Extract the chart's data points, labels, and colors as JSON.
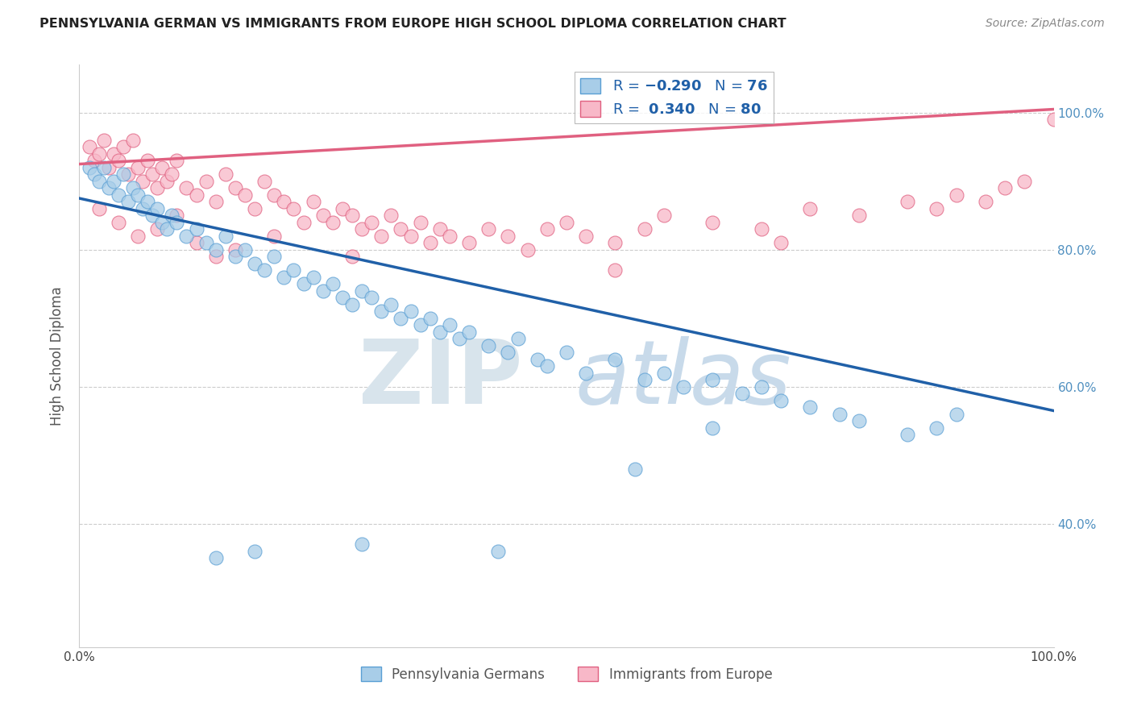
{
  "title": "PENNSYLVANIA GERMAN VS IMMIGRANTS FROM EUROPE HIGH SCHOOL DIPLOMA CORRELATION CHART",
  "source": "Source: ZipAtlas.com",
  "ylabel": "High School Diploma",
  "legend_blue_n": "76",
  "legend_pink_r": "0.340",
  "legend_pink_n": "80",
  "blue_color": "#a8cde8",
  "blue_edge_color": "#5a9fd4",
  "blue_line_color": "#2060a8",
  "pink_color": "#f8b8c8",
  "pink_edge_color": "#e06080",
  "pink_line_color": "#e06080",
  "watermark_zip_color": "#e0e8f0",
  "watermark_atlas_color": "#c8dff0",
  "right_tick_color": "#5090c0",
  "title_color": "#222222",
  "ylabel_color": "#555555",
  "source_color": "#888888",
  "grid_color": "#cccccc",
  "xlim": [
    0.0,
    1.0
  ],
  "ylim": [
    0.22,
    1.07
  ],
  "blue_line_x0": 0.0,
  "blue_line_y0": 0.875,
  "blue_line_x1": 1.0,
  "blue_line_y1": 0.565,
  "pink_line_x0": 0.0,
  "pink_line_y0": 0.925,
  "pink_line_x1": 1.0,
  "pink_line_y1": 1.005,
  "blue_x": [
    0.01,
    0.015,
    0.02,
    0.025,
    0.03,
    0.035,
    0.04,
    0.045,
    0.05,
    0.055,
    0.06,
    0.065,
    0.07,
    0.075,
    0.08,
    0.085,
    0.09,
    0.095,
    0.1,
    0.11,
    0.12,
    0.13,
    0.14,
    0.15,
    0.16,
    0.17,
    0.18,
    0.19,
    0.2,
    0.21,
    0.22,
    0.23,
    0.24,
    0.25,
    0.26,
    0.27,
    0.28,
    0.29,
    0.3,
    0.31,
    0.32,
    0.33,
    0.34,
    0.35,
    0.36,
    0.37,
    0.38,
    0.39,
    0.4,
    0.42,
    0.44,
    0.45,
    0.47,
    0.48,
    0.5,
    0.52,
    0.55,
    0.58,
    0.6,
    0.62,
    0.65,
    0.68,
    0.7,
    0.72,
    0.75,
    0.78,
    0.8,
    0.85,
    0.88,
    0.9,
    0.14,
    0.18,
    0.29,
    0.43,
    0.57,
    0.65
  ],
  "blue_y": [
    0.92,
    0.91,
    0.9,
    0.92,
    0.89,
    0.9,
    0.88,
    0.91,
    0.87,
    0.89,
    0.88,
    0.86,
    0.87,
    0.85,
    0.86,
    0.84,
    0.83,
    0.85,
    0.84,
    0.82,
    0.83,
    0.81,
    0.8,
    0.82,
    0.79,
    0.8,
    0.78,
    0.77,
    0.79,
    0.76,
    0.77,
    0.75,
    0.76,
    0.74,
    0.75,
    0.73,
    0.72,
    0.74,
    0.73,
    0.71,
    0.72,
    0.7,
    0.71,
    0.69,
    0.7,
    0.68,
    0.69,
    0.67,
    0.68,
    0.66,
    0.65,
    0.67,
    0.64,
    0.63,
    0.65,
    0.62,
    0.64,
    0.61,
    0.62,
    0.6,
    0.61,
    0.59,
    0.6,
    0.58,
    0.57,
    0.56,
    0.55,
    0.53,
    0.54,
    0.56,
    0.35,
    0.36,
    0.37,
    0.36,
    0.48,
    0.54
  ],
  "pink_x": [
    0.01,
    0.015,
    0.02,
    0.025,
    0.03,
    0.035,
    0.04,
    0.045,
    0.05,
    0.055,
    0.06,
    0.065,
    0.07,
    0.075,
    0.08,
    0.085,
    0.09,
    0.095,
    0.1,
    0.11,
    0.12,
    0.13,
    0.14,
    0.15,
    0.16,
    0.17,
    0.18,
    0.19,
    0.2,
    0.21,
    0.22,
    0.23,
    0.24,
    0.25,
    0.26,
    0.27,
    0.28,
    0.29,
    0.3,
    0.31,
    0.32,
    0.33,
    0.34,
    0.35,
    0.36,
    0.37,
    0.38,
    0.4,
    0.42,
    0.44,
    0.46,
    0.48,
    0.5,
    0.52,
    0.55,
    0.58,
    0.6,
    0.65,
    0.7,
    0.72,
    0.75,
    0.8,
    0.85,
    0.88,
    0.9,
    0.93,
    0.95,
    0.97,
    1.0,
    0.02,
    0.04,
    0.06,
    0.08,
    0.1,
    0.12,
    0.14,
    0.16,
    0.2,
    0.28,
    0.55
  ],
  "pink_y": [
    0.95,
    0.93,
    0.94,
    0.96,
    0.92,
    0.94,
    0.93,
    0.95,
    0.91,
    0.96,
    0.92,
    0.9,
    0.93,
    0.91,
    0.89,
    0.92,
    0.9,
    0.91,
    0.93,
    0.89,
    0.88,
    0.9,
    0.87,
    0.91,
    0.89,
    0.88,
    0.86,
    0.9,
    0.88,
    0.87,
    0.86,
    0.84,
    0.87,
    0.85,
    0.84,
    0.86,
    0.85,
    0.83,
    0.84,
    0.82,
    0.85,
    0.83,
    0.82,
    0.84,
    0.81,
    0.83,
    0.82,
    0.81,
    0.83,
    0.82,
    0.8,
    0.83,
    0.84,
    0.82,
    0.81,
    0.83,
    0.85,
    0.84,
    0.83,
    0.81,
    0.86,
    0.85,
    0.87,
    0.86,
    0.88,
    0.87,
    0.89,
    0.9,
    0.99,
    0.86,
    0.84,
    0.82,
    0.83,
    0.85,
    0.81,
    0.79,
    0.8,
    0.82,
    0.79,
    0.77
  ]
}
